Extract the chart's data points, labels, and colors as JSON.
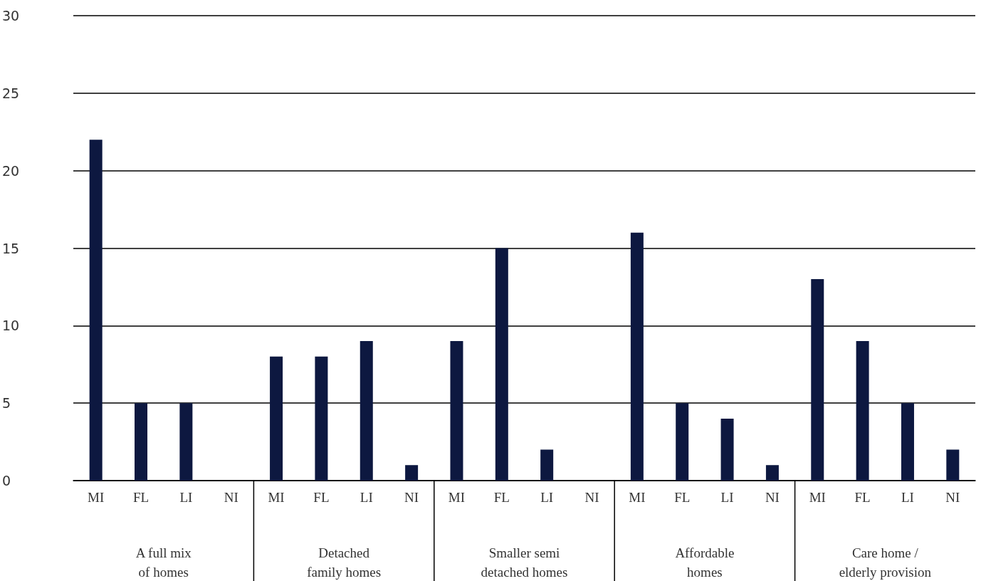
{
  "chart_data": {
    "type": "bar",
    "categories": [
      "MI",
      "FL",
      "LI",
      "NI",
      "MI",
      "FL",
      "LI",
      "NI",
      "MI",
      "FL",
      "LI",
      "NI",
      "MI",
      "FL",
      "LI",
      "NI",
      "MI",
      "FL",
      "LI",
      "NI"
    ],
    "values": [
      22,
      5,
      5,
      0,
      8,
      8,
      9,
      1,
      9,
      15,
      2,
      0,
      16,
      5,
      4,
      1,
      13,
      9,
      5,
      2
    ],
    "color": "#0d1840",
    "ylim": [
      0,
      30
    ],
    "yticks": [
      0,
      5,
      10,
      15,
      20,
      25,
      30
    ],
    "grid": "y",
    "annotations": [
      "A full mix\nof homes",
      "Detached\nfamily homes",
      "Smaller semi\ndetached homes",
      "Affordable\nhomes",
      "Care home /\nelderly provision"
    ]
  }
}
